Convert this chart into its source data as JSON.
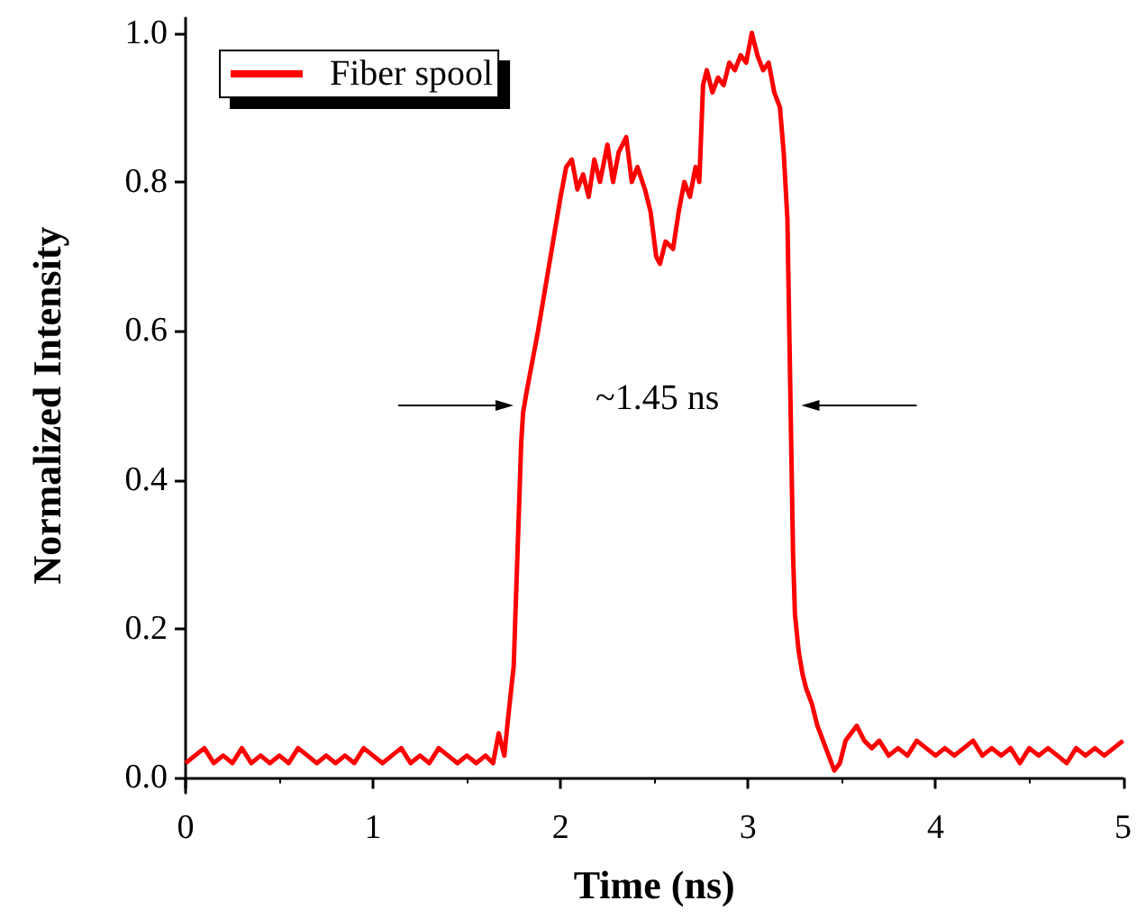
{
  "chart_data": {
    "type": "line",
    "xlabel": "Time (ns)",
    "ylabel": "Normalized Intensity",
    "xlim": [
      0,
      5
    ],
    "xticks": [
      0,
      1,
      2,
      3,
      4,
      5
    ],
    "ylim": [
      -0.02,
      1.02
    ],
    "yticks": [
      {
        "value": 0,
        "label": "0.0"
      },
      {
        "value": 0.2,
        "label": "0.2"
      },
      {
        "value": 0.4,
        "label": "0.4"
      },
      {
        "value": 0.6,
        "label": "0.6"
      },
      {
        "value": 0.8,
        "label": "0.8"
      },
      {
        "value": 1,
        "label": "1.0"
      }
    ],
    "grid": false,
    "legend": "top left",
    "marker": "none",
    "line_style": "solid",
    "annotations": [
      "~1.45 ns"
    ],
    "series": [
      {
        "name": "Fiber spool",
        "color": "#ff0000",
        "x": [
          0,
          0.05,
          0.1,
          0.15,
          0.2,
          0.25,
          0.3,
          0.35,
          0.4,
          0.45,
          0.5,
          0.55,
          0.6,
          0.65,
          0.7,
          0.75,
          0.8,
          0.85,
          0.9,
          0.95,
          1,
          1.05,
          1.1,
          1.15,
          1.2,
          1.25,
          1.3,
          1.35,
          1.4,
          1.45,
          1.5,
          1.55,
          1.6,
          1.64,
          1.67,
          1.7,
          1.72,
          1.75,
          1.77,
          1.79,
          1.8,
          1.82,
          1.85,
          1.88,
          1.92,
          1.96,
          2,
          2.03,
          2.06,
          2.09,
          2.12,
          2.15,
          2.18,
          2.21,
          2.25,
          2.28,
          2.31,
          2.35,
          2.38,
          2.41,
          2.45,
          2.48,
          2.51,
          2.53,
          2.56,
          2.6,
          2.63,
          2.66,
          2.69,
          2.72,
          2.74,
          2.76,
          2.78,
          2.81,
          2.84,
          2.87,
          2.9,
          2.93,
          2.96,
          2.99,
          3.02,
          3.05,
          3.08,
          3.11,
          3.14,
          3.17,
          3.19,
          3.21,
          3.22,
          3.23,
          3.24,
          3.25,
          3.27,
          3.29,
          3.31,
          3.34,
          3.37,
          3.4,
          3.43,
          3.46,
          3.49,
          3.52,
          3.55,
          3.58,
          3.62,
          3.66,
          3.7,
          3.75,
          3.8,
          3.85,
          3.9,
          3.95,
          4,
          4.05,
          4.1,
          4.15,
          4.2,
          4.25,
          4.3,
          4.35,
          4.4,
          4.45,
          4.5,
          4.55,
          4.6,
          4.65,
          4.7,
          4.75,
          4.8,
          4.85,
          4.9,
          4.95,
          5
        ],
        "values": [
          0.02,
          0.03,
          0.04,
          0.02,
          0.03,
          0.02,
          0.04,
          0.02,
          0.03,
          0.02,
          0.03,
          0.02,
          0.04,
          0.03,
          0.02,
          0.03,
          0.02,
          0.03,
          0.02,
          0.04,
          0.03,
          0.02,
          0.03,
          0.04,
          0.02,
          0.03,
          0.02,
          0.04,
          0.03,
          0.02,
          0.03,
          0.02,
          0.03,
          0.02,
          0.06,
          0.03,
          0.08,
          0.15,
          0.3,
          0.45,
          0.49,
          0.52,
          0.56,
          0.6,
          0.66,
          0.72,
          0.78,
          0.82,
          0.83,
          0.79,
          0.81,
          0.78,
          0.83,
          0.8,
          0.85,
          0.8,
          0.84,
          0.86,
          0.8,
          0.82,
          0.79,
          0.76,
          0.7,
          0.69,
          0.72,
          0.71,
          0.76,
          0.8,
          0.78,
          0.82,
          0.8,
          0.93,
          0.95,
          0.92,
          0.94,
          0.93,
          0.96,
          0.95,
          0.97,
          0.96,
          1,
          0.97,
          0.95,
          0.96,
          0.92,
          0.9,
          0.84,
          0.75,
          0.6,
          0.45,
          0.3,
          0.22,
          0.17,
          0.14,
          0.12,
          0.1,
          0.07,
          0.05,
          0.03,
          0.01,
          0.02,
          0.05,
          0.06,
          0.07,
          0.05,
          0.04,
          0.05,
          0.03,
          0.04,
          0.03,
          0.05,
          0.04,
          0.03,
          0.04,
          0.03,
          0.04,
          0.05,
          0.03,
          0.04,
          0.03,
          0.04,
          0.02,
          0.04,
          0.03,
          0.04,
          0.03,
          0.02,
          0.04,
          0.03,
          0.04,
          0.03,
          0.04,
          0.05
        ]
      }
    ]
  }
}
